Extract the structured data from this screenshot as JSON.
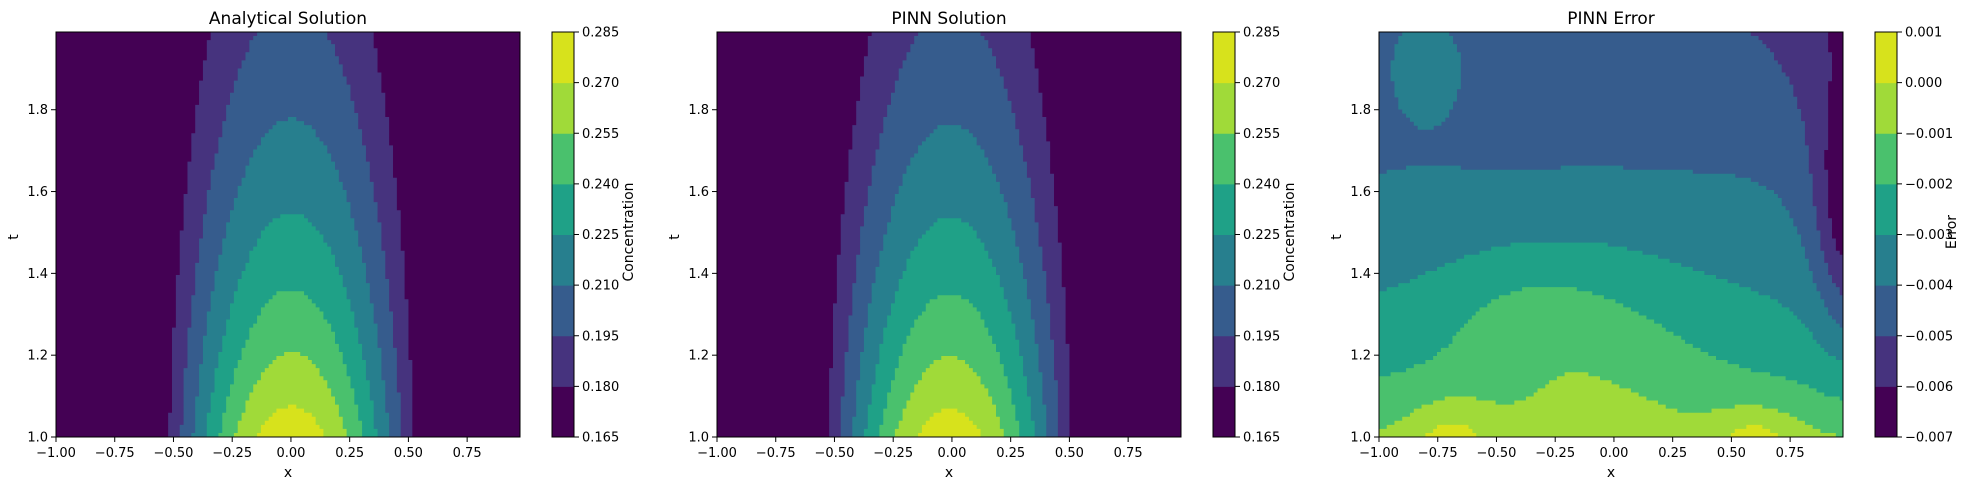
{
  "chart_data": [
    {
      "type": "contour",
      "title": "Analytical Solution",
      "xlabel": "x",
      "ylabel": "t",
      "xlim": [
        -1.0,
        0.975
      ],
      "ylim": [
        1.0,
        1.99
      ],
      "xticks": [
        "−1.00",
        "−0.75",
        "−0.50",
        "−0.25",
        "0.00",
        "0.25",
        "0.50",
        "0.75"
      ],
      "yticks": [
        "1.0",
        "1.2",
        "1.4",
        "1.6",
        "1.8"
      ],
      "field": {
        "kind": "gaussian",
        "width": 0.55,
        "peak_at_t1": 0.28,
        "x_center": 0.0
      },
      "colorbar": {
        "label": "Concentration",
        "levels": [
          0.165,
          0.18,
          0.195,
          0.21,
          0.225,
          0.24,
          0.255,
          0.27,
          0.285
        ],
        "ticks": [
          "0.165",
          "0.180",
          "0.195",
          "0.210",
          "0.225",
          "0.240",
          "0.255",
          "0.270",
          "0.285"
        ],
        "colors": [
          "#440154",
          "#46337e",
          "#365c8d",
          "#277f8e",
          "#1fa187",
          "#4ac16d",
          "#a0da39",
          "#d7e21c"
        ]
      }
    },
    {
      "type": "contour",
      "title": "PINN Solution",
      "xlabel": "x",
      "ylabel": "t",
      "xlim": [
        -1.0,
        0.975
      ],
      "ylim": [
        1.0,
        1.99
      ],
      "xticks": [
        "−1.00",
        "−0.75",
        "−0.50",
        "−0.25",
        "0.00",
        "0.25",
        "0.50",
        "0.75"
      ],
      "yticks": [
        "1.0",
        "1.2",
        "1.4",
        "1.6",
        "1.8"
      ],
      "field": {
        "kind": "gaussian",
        "width": 0.55,
        "peak_at_t1": 0.279,
        "x_center": -0.01
      },
      "colorbar": {
        "label": "Concentration",
        "levels": [
          0.165,
          0.18,
          0.195,
          0.21,
          0.225,
          0.24,
          0.255,
          0.27,
          0.285
        ],
        "ticks": [
          "0.165",
          "0.180",
          "0.195",
          "0.210",
          "0.225",
          "0.240",
          "0.255",
          "0.270",
          "0.285"
        ],
        "colors": [
          "#440154",
          "#46337e",
          "#365c8d",
          "#277f8e",
          "#1fa187",
          "#4ac16d",
          "#a0da39",
          "#d7e21c"
        ]
      }
    },
    {
      "type": "contour",
      "title": "PINN Error",
      "xlabel": "x",
      "ylabel": "t",
      "xlim": [
        -1.0,
        0.975
      ],
      "ylim": [
        1.0,
        1.99
      ],
      "xticks": [
        "−1.00",
        "−0.75",
        "−0.50",
        "−0.25",
        "0.00",
        "0.25",
        "0.50",
        "0.75"
      ],
      "yticks": [
        "1.0",
        "1.2",
        "1.4",
        "1.6",
        "1.8"
      ],
      "field": {
        "kind": "error"
      },
      "colorbar": {
        "label": "Error",
        "levels": [
          -0.007,
          -0.006,
          -0.005,
          -0.004,
          -0.003,
          -0.002,
          -0.001,
          0.0,
          0.001
        ],
        "ticks": [
          "−0.007",
          "−0.006",
          "−0.005",
          "−0.004",
          "−0.003",
          "−0.002",
          "−0.001",
          "0.000",
          "0.001"
        ],
        "colors": [
          "#440154",
          "#46337e",
          "#365c8d",
          "#277f8e",
          "#1fa187",
          "#4ac16d",
          "#a0da39",
          "#d7e21c"
        ]
      }
    }
  ]
}
